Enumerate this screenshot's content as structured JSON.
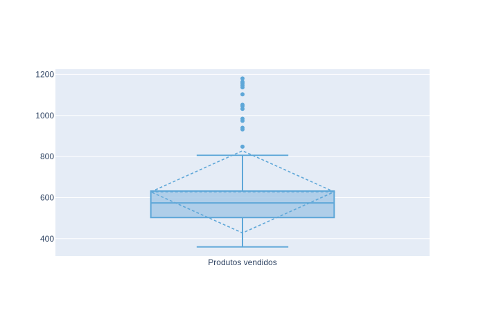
{
  "chart_data": {
    "type": "box",
    "categories": [
      "Produtos vendidos"
    ],
    "ylim": [
      315,
      1225
    ],
    "yticks": [
      400,
      600,
      800,
      1000,
      1200
    ],
    "grid": true,
    "series": [
      {
        "stats": {
          "lowerfence": 360,
          "q1": 503,
          "median": 574,
          "q3": 632,
          "upperfence": 806,
          "mean": 628,
          "sd": 200
        },
        "outliers": [
          848,
          932,
          940,
          974,
          984,
          1032,
          1046,
          1052,
          1103,
          1137,
          1147,
          1157,
          1163,
          1180
        ],
        "color": "#5ea7d8",
        "fill": "#a6c9e6"
      }
    ]
  },
  "colors": {
    "plot_bg": "#e5ecf6",
    "grid": "#ffffff",
    "text": "#2a3f5f"
  }
}
